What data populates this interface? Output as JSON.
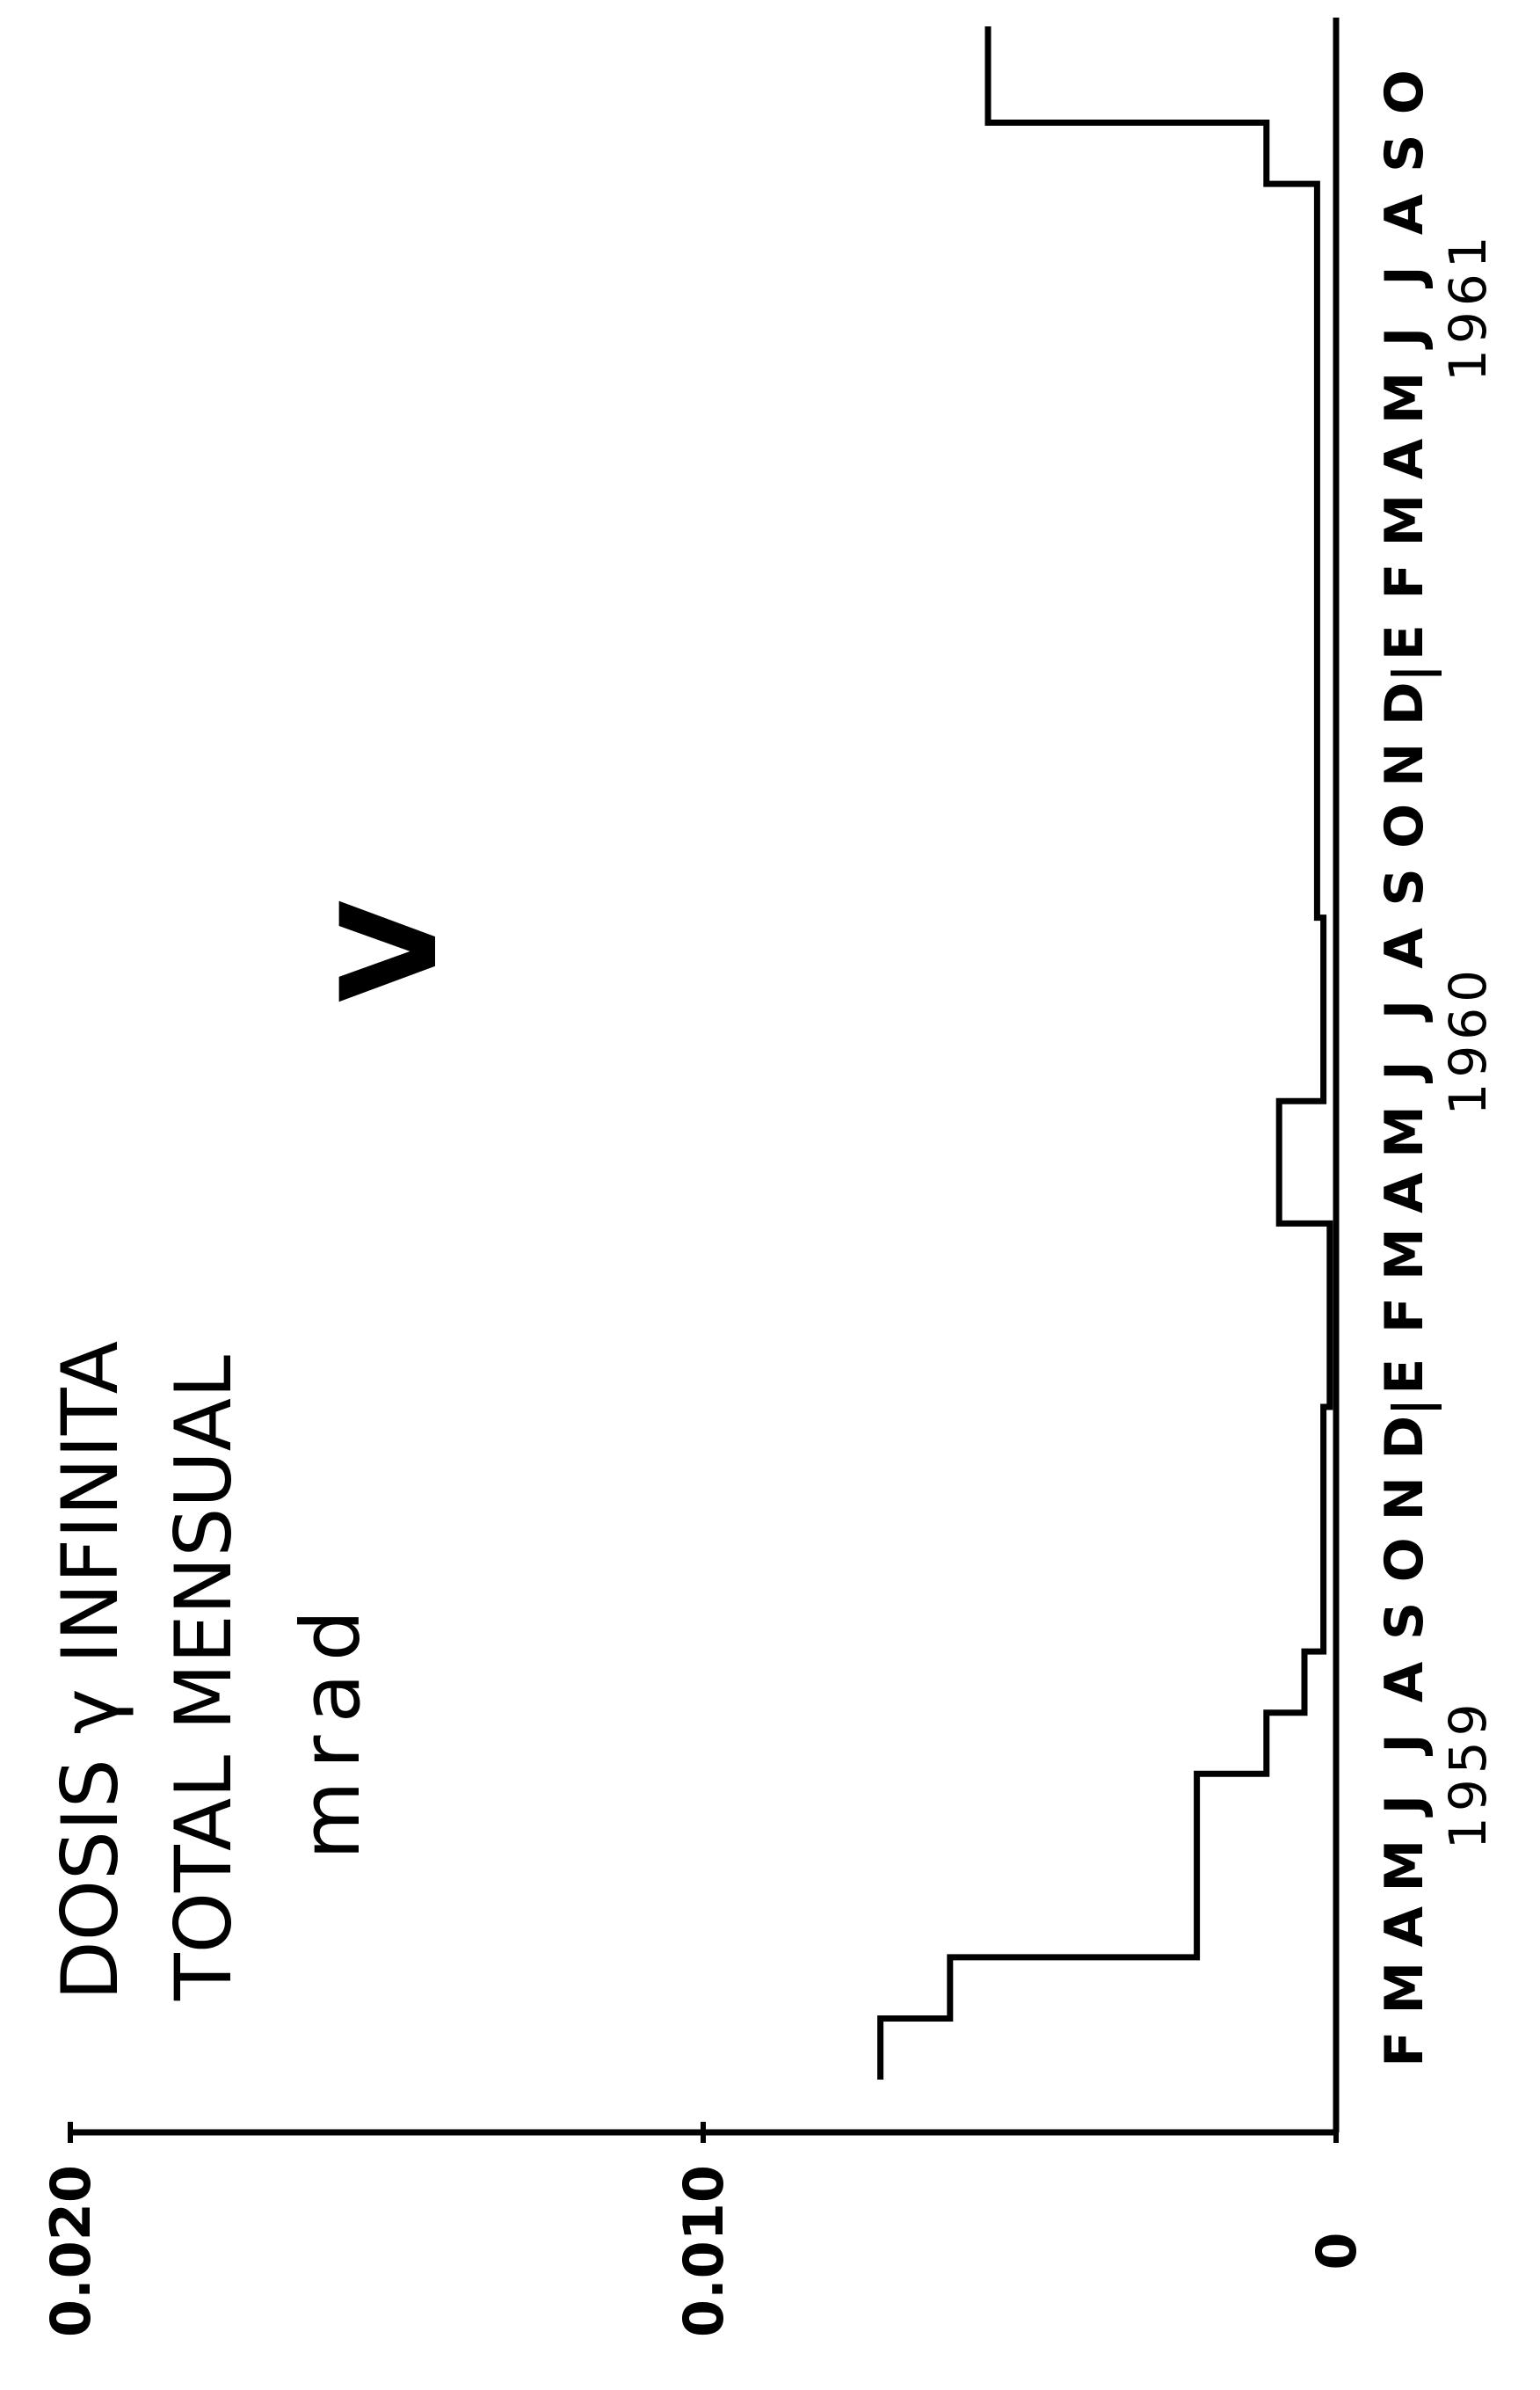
{
  "chart_data": {
    "type": "line",
    "step": true,
    "orientation": "rotated-90-ccw",
    "title_lines": [
      "DOSIS γ INFINITA",
      "TOTAL  MENSUAL",
      "mrad"
    ],
    "panel_label": "V",
    "y_axis": {
      "ticks": [
        "0",
        "0.010",
        "0.020"
      ],
      "tick_values": [
        0,
        0.01,
        0.02
      ],
      "range": [
        0,
        0.02
      ]
    },
    "x_axis": {
      "months": [
        "F",
        "M",
        "A",
        "M",
        "J",
        "J",
        "A",
        "S",
        "O",
        "N",
        "D",
        "E",
        "F",
        "M",
        "A",
        "M",
        "J",
        "J",
        "A",
        "S",
        "O",
        "N",
        "D",
        "E",
        "F",
        "M",
        "A",
        "M",
        "J",
        "J",
        "A",
        "S",
        "O"
      ],
      "year_labels": [
        {
          "label": "1959",
          "after_month_index": 4
        },
        {
          "label": "1960",
          "after_month_index": 16
        },
        {
          "label": "1961",
          "after_month_index": 28
        }
      ],
      "year_breaks_after_index": [
        10,
        22
      ]
    },
    "series": [
      {
        "values": [
          0.0072,
          0.0061,
          0.0022,
          0.0022,
          0.0022,
          0.0011,
          0.0005,
          0.0002,
          0.0002,
          0.0002,
          0.0002,
          0.0001,
          0.0001,
          0.0001,
          0.0009,
          0.0009,
          0.0002,
          0.0002,
          0.0002,
          0.0003,
          0.0003,
          0.0003,
          0.0003,
          0.0003,
          0.0003,
          0.0003,
          0.0003,
          0.0003,
          0.0003,
          0.0003,
          0.0003,
          0.0011,
          0.0055
        ],
        "gaps_after_index": [
          23
        ],
        "extends_beyond_top": true
      }
    ]
  }
}
